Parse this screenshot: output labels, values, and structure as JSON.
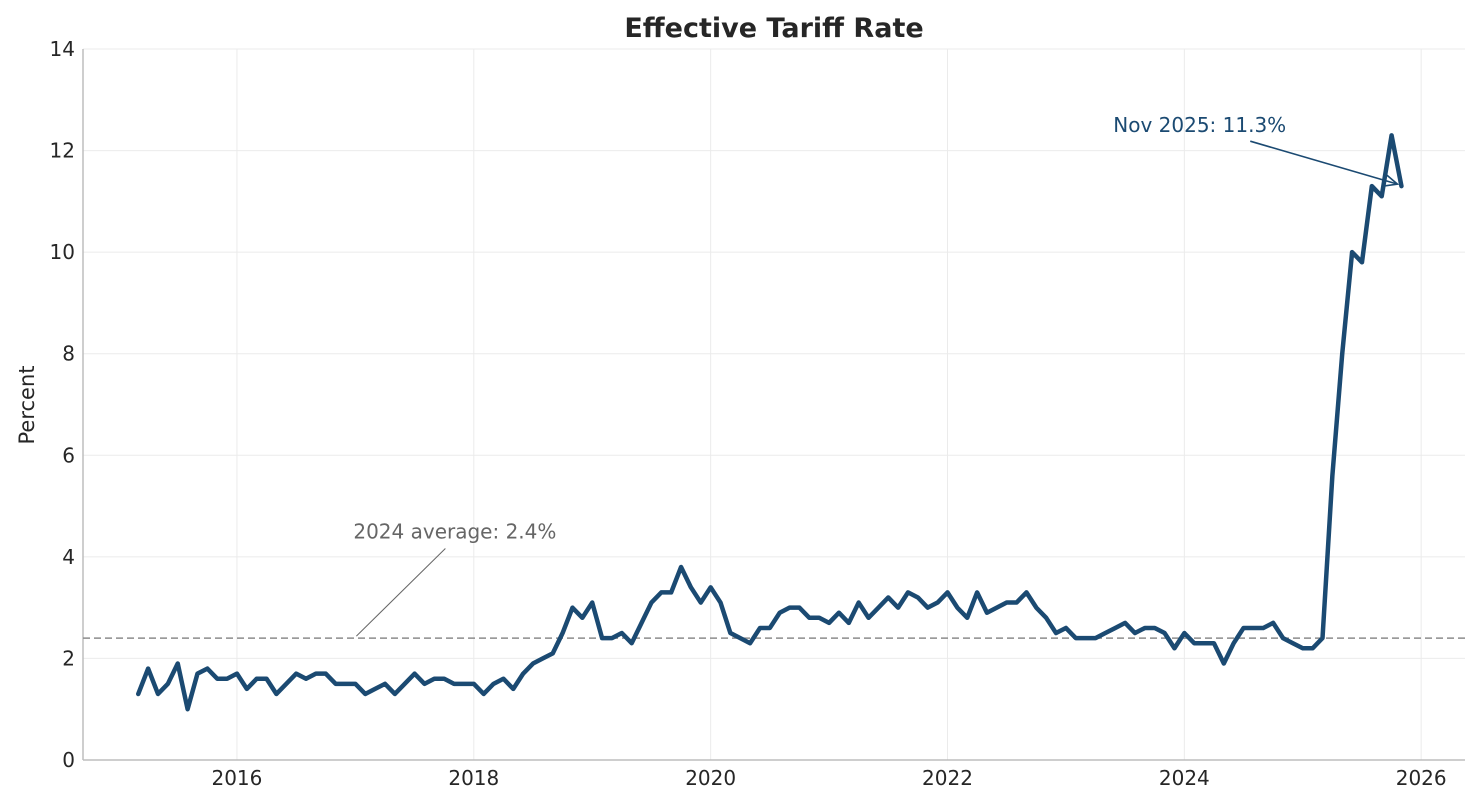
{
  "chart_data": {
    "type": "line",
    "title": "Effective Tariff Rate",
    "xlabel": "",
    "ylabel": "Percent",
    "xlim": [
      2014.7,
      2026.37
    ],
    "ylim": [
      0,
      14
    ],
    "x_ticks": [
      2016,
      2018,
      2020,
      2022,
      2024,
      2026
    ],
    "y_ticks": [
      0,
      2,
      4,
      6,
      8,
      10,
      12,
      14
    ],
    "grid": true,
    "legend": "none",
    "colors": {
      "series": "#1b4a72",
      "reference": "#8c8c8c",
      "reference_annotation": "#666666",
      "latest_annotation": "#1b4a72"
    },
    "series": [
      {
        "x": [
          "2015-03",
          "2015-04",
          "2015-05",
          "2015-06",
          "2015-07",
          "2015-08",
          "2015-09",
          "2015-10",
          "2015-11",
          "2015-12",
          "2016-01",
          "2016-02",
          "2016-03",
          "2016-04",
          "2016-05",
          "2016-06",
          "2016-07",
          "2016-08",
          "2016-09",
          "2016-10",
          "2016-11",
          "2016-12",
          "2017-01",
          "2017-02",
          "2017-03",
          "2017-04",
          "2017-05",
          "2017-06",
          "2017-07",
          "2017-08",
          "2017-09",
          "2017-10",
          "2017-11",
          "2017-12",
          "2018-01",
          "2018-02",
          "2018-03",
          "2018-04",
          "2018-05",
          "2018-06",
          "2018-07",
          "2018-08",
          "2018-09",
          "2018-10",
          "2018-11",
          "2018-12",
          "2019-01",
          "2019-02",
          "2019-03",
          "2019-04",
          "2019-05",
          "2019-06",
          "2019-07",
          "2019-08",
          "2019-09",
          "2019-10",
          "2019-11",
          "2019-12",
          "2020-01",
          "2020-02",
          "2020-03",
          "2020-04",
          "2020-05",
          "2020-06",
          "2020-07",
          "2020-08",
          "2020-09",
          "2020-10",
          "2020-11",
          "2020-12",
          "2021-01",
          "2021-02",
          "2021-03",
          "2021-04",
          "2021-05",
          "2021-06",
          "2021-07",
          "2021-08",
          "2021-09",
          "2021-10",
          "2021-11",
          "2021-12",
          "2022-01",
          "2022-02",
          "2022-03",
          "2022-04",
          "2022-05",
          "2022-06",
          "2022-07",
          "2022-08",
          "2022-09",
          "2022-10",
          "2022-11",
          "2022-12",
          "2023-01",
          "2023-02",
          "2023-03",
          "2023-04",
          "2023-05",
          "2023-06",
          "2023-07",
          "2023-08",
          "2023-09",
          "2023-10",
          "2023-11",
          "2023-12",
          "2024-01",
          "2024-02",
          "2024-03",
          "2024-04",
          "2024-05",
          "2024-06",
          "2024-07",
          "2024-08",
          "2024-09",
          "2024-10",
          "2024-11",
          "2024-12",
          "2025-01",
          "2025-02",
          "2025-03",
          "2025-04",
          "2025-05",
          "2025-06",
          "2025-07",
          "2025-08",
          "2025-09",
          "2025-10",
          "2025-11"
        ],
        "y": [
          1.3,
          1.8,
          1.3,
          1.5,
          1.9,
          1.0,
          1.7,
          1.8,
          1.6,
          1.6,
          1.7,
          1.4,
          1.6,
          1.6,
          1.3,
          1.5,
          1.7,
          1.6,
          1.7,
          1.7,
          1.5,
          1.5,
          1.5,
          1.3,
          1.4,
          1.5,
          1.3,
          1.5,
          1.7,
          1.5,
          1.6,
          1.6,
          1.5,
          1.5,
          1.5,
          1.3,
          1.5,
          1.6,
          1.4,
          1.7,
          1.9,
          2.0,
          2.1,
          2.5,
          3.0,
          2.8,
          3.1,
          2.4,
          2.4,
          2.5,
          2.3,
          2.7,
          3.1,
          3.3,
          3.3,
          3.8,
          3.4,
          3.1,
          3.4,
          3.1,
          2.5,
          2.4,
          2.3,
          2.6,
          2.6,
          2.9,
          3.0,
          3.0,
          2.8,
          2.8,
          2.7,
          2.9,
          2.7,
          3.1,
          2.8,
          3.0,
          3.2,
          3.0,
          3.3,
          3.2,
          3.0,
          3.1,
          3.3,
          3.0,
          2.8,
          3.3,
          2.9,
          3.0,
          3.1,
          3.1,
          3.3,
          3.0,
          2.8,
          2.5,
          2.6,
          2.4,
          2.4,
          2.4,
          2.5,
          2.6,
          2.7,
          2.5,
          2.6,
          2.6,
          2.5,
          2.2,
          2.5,
          2.3,
          2.3,
          2.3,
          1.9,
          2.3,
          2.6,
          2.6,
          2.6,
          2.7,
          2.4,
          2.3,
          2.2,
          2.2,
          2.4,
          5.6,
          8.0,
          10.0,
          9.8,
          11.3,
          11.1,
          12.3,
          11.3
        ]
      }
    ],
    "reference_line": {
      "y": 2.4,
      "label": "2024 average: 2.4%"
    },
    "annotations": [
      {
        "text": "2024 average: 2.4%",
        "target": [
          "2017-01",
          2.4
        ],
        "text_at": [
          "2017-01",
          4.5
        ]
      },
      {
        "text": "Nov 2025: 11.3%",
        "target": [
          "2025-11",
          11.3
        ],
        "text_at": [
          "2023-06",
          12.5
        ]
      }
    ]
  }
}
